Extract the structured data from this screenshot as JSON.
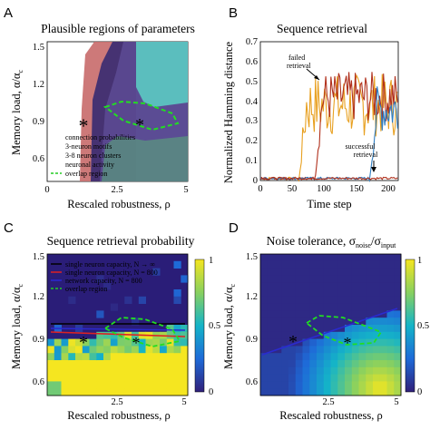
{
  "panels": {
    "A": {
      "letter": "A",
      "title": "Plausible regions of parameters",
      "xlabel": "Rescaled robustness, ρ",
      "ylabel": "Memory load, α/α",
      "ylabel_sub": "c",
      "xticks": [
        "0",
        "2.5",
        "5"
      ],
      "yticks": [
        "0.6",
        "0.9",
        "1.2",
        "1.5"
      ],
      "legend": [
        {
          "label": "connection probabilities",
          "color": "#c55a5a"
        },
        {
          "label": "3-neuron motifs",
          "color": "#5fb06a"
        },
        {
          "label": "3-8 neuron clusters",
          "color": "#3a2f6e"
        },
        {
          "label": "neuronal activity",
          "color": "#56c3c3"
        },
        {
          "label": "overlap region",
          "color": "#22cc22"
        }
      ]
    },
    "B": {
      "letter": "B",
      "title": "Sequence retrieval",
      "xlabel": "Time step",
      "ylabel": "Normalized Hamming distance",
      "xticks": [
        "0",
        "50",
        "100",
        "150",
        "200"
      ],
      "yticks": [
        "0",
        "0.1",
        "0.2",
        "0.3",
        "0.4",
        "0.5",
        "0.6",
        "0.7"
      ],
      "annotation_failed": [
        "failed",
        "retrieval"
      ],
      "annotation_success": [
        "successful",
        "retrieval"
      ]
    },
    "C": {
      "letter": "C",
      "title": "Sequence retrieval probability",
      "xlabel": "Rescaled robustness, ρ",
      "ylabel": "Memory load, α/α",
      "ylabel_sub": "c",
      "xticks": [
        "2.5",
        "5"
      ],
      "yticks": [
        "0.6",
        "0.9",
        "1.2",
        "1.5"
      ],
      "colorbar_ticks": [
        "0",
        "0.5",
        "1"
      ],
      "legend": [
        {
          "label": "single neuron capacity, N → ∞",
          "color": "#000000"
        },
        {
          "label": "single neuron capacity, N = 800",
          "color": "#dd2222"
        },
        {
          "label": "network capacity, N = 800",
          "color": "#2a2ad0"
        },
        {
          "label": "overlap region",
          "color": "#22cc22"
        }
      ]
    },
    "D": {
      "letter": "D",
      "title": "Noise tolerance, σ",
      "title_sub1": "noise",
      "title_mid": "/σ",
      "title_sub2": "input",
      "xlabel": "Rescaled robustness, ρ",
      "ylabel": "Memory load, α/α",
      "ylabel_sub": "c",
      "xticks": [
        "2.5",
        "5"
      ],
      "yticks": [
        "0.6",
        "0.9",
        "1.2",
        "1.5"
      ],
      "colorbar_ticks": [
        "0",
        "0.5",
        "1"
      ]
    }
  },
  "chart_data": [
    {
      "type": "area",
      "panel": "A",
      "xlim": [
        0,
        5
      ],
      "ylim": [
        0.6,
        1.5
      ],
      "series": [
        {
          "name": "connection probabilities",
          "marker_star": {
            "x": 1.2,
            "y": 0.9
          }
        },
        {
          "name": "3-neuron motifs"
        },
        {
          "name": "3-8 neuron clusters"
        },
        {
          "name": "neuronal activity"
        },
        {
          "name": "overlap region",
          "marker_star": {
            "x": 3.3,
            "y": 0.9
          }
        }
      ]
    },
    {
      "type": "line",
      "panel": "B",
      "xlim": [
        0,
        215
      ],
      "ylim": [
        0,
        0.7
      ],
      "series": [
        {
          "name": "failed retrieval (orange)",
          "color": "#e8a020",
          "onset": 60
        },
        {
          "name": "failed retrieval (dark red)",
          "color": "#b0301c",
          "onset": 85
        },
        {
          "name": "failed retrieval (blue)",
          "color": "#2f7ec2",
          "onset": 170
        },
        {
          "name": "successful retrieval",
          "color": "#b0301c",
          "onset": null
        }
      ]
    },
    {
      "type": "heatmap",
      "panel": "C",
      "xlim": [
        0,
        5
      ],
      "ylim": [
        0.55,
        1.5
      ],
      "zlim": [
        0,
        1
      ],
      "lines": [
        {
          "name": "single neuron capacity, N → ∞",
          "y": 1.0
        },
        {
          "name": "single neuron capacity, N = 800",
          "y0": 0.95,
          "y1": 0.92
        },
        {
          "name": "network capacity, N = 800",
          "y0": 0.96,
          "y1": 0.96
        }
      ]
    },
    {
      "type": "heatmap",
      "panel": "D",
      "xlim": [
        0,
        5
      ],
      "ylim": [
        0.55,
        1.5
      ],
      "zlim": [
        0,
        1
      ],
      "lines": [
        {
          "name": "boundary",
          "y0": 0.8,
          "y1": 1.12
        }
      ]
    }
  ]
}
